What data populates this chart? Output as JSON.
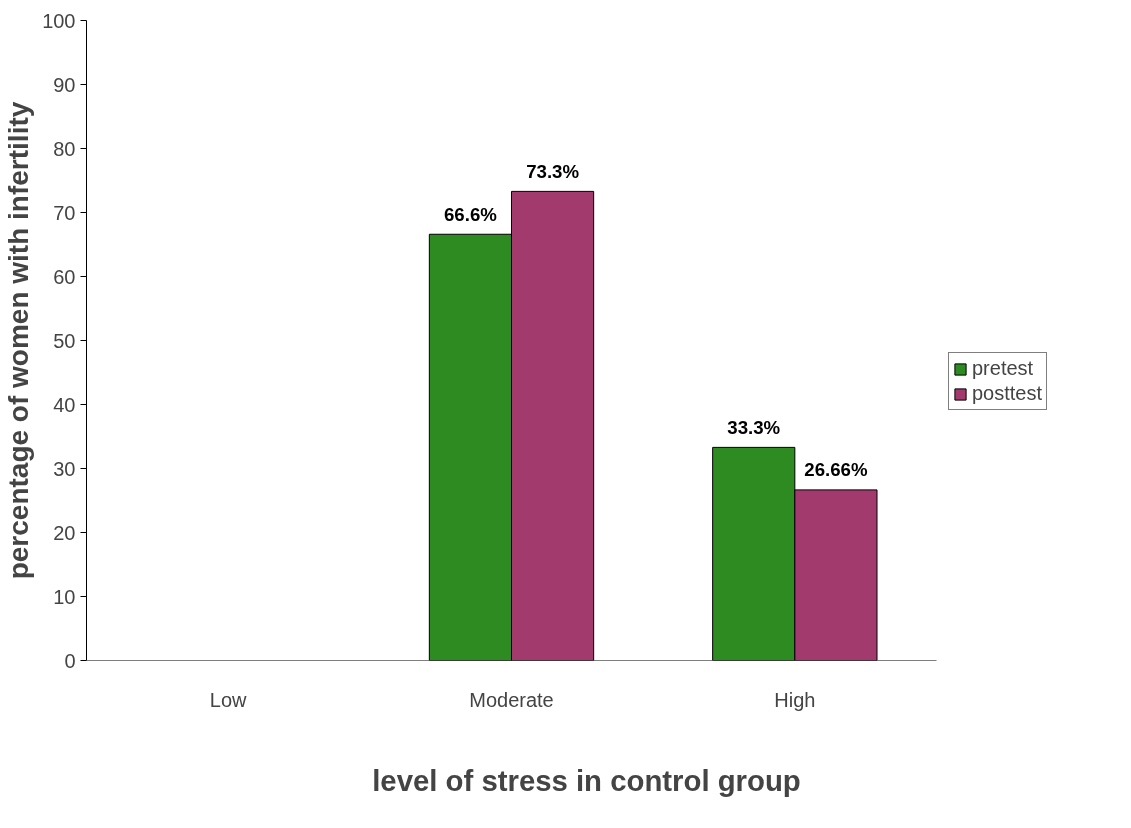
{
  "chart_data": {
    "type": "bar",
    "xlabel": "level of stress in control group",
    "ylabel": "percentage of women with infertility",
    "categories": [
      "Low",
      "Moderate",
      "High"
    ],
    "series": [
      {
        "name": "pretest",
        "color": "#2e8b22",
        "values": [
          null,
          66.6,
          33.3
        ],
        "value_labels": [
          null,
          "66.6%",
          "33.3%"
        ]
      },
      {
        "name": "posttest",
        "color": "#a33a6e",
        "values": [
          null,
          73.3,
          26.66
        ],
        "value_labels": [
          null,
          "73.3%",
          "26.66%"
        ]
      }
    ],
    "ylim": [
      0,
      100
    ],
    "yticks": [
      0,
      10,
      20,
      30,
      40,
      50,
      60,
      70,
      80,
      90,
      100
    ],
    "grid": false,
    "legend": "right"
  }
}
